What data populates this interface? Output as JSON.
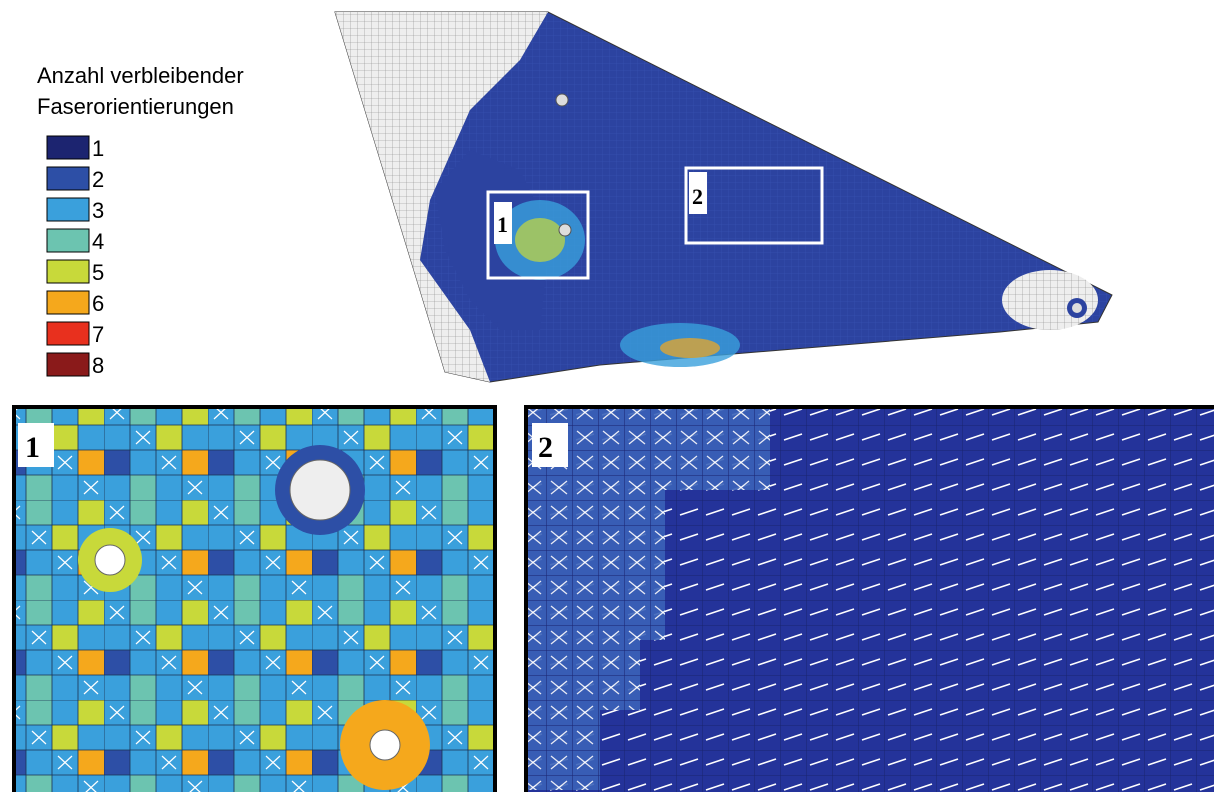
{
  "legend": {
    "title": [
      "Anzahl verbleibender",
      "Faserorientierungen"
    ],
    "items": [
      {
        "label": "1",
        "color": "#1c2470"
      },
      {
        "label": "2",
        "color": "#2d4fa6"
      },
      {
        "label": "3",
        "color": "#3aa0dc"
      },
      {
        "label": "4",
        "color": "#6cc4b0"
      },
      {
        "label": "5",
        "color": "#c8d93a"
      },
      {
        "label": "6",
        "color": "#f5a81c"
      },
      {
        "label": "7",
        "color": "#e8301e"
      },
      {
        "label": "8",
        "color": "#8a1a1a"
      }
    ]
  },
  "regions": [
    {
      "label": "1"
    },
    {
      "label": "2"
    }
  ],
  "panels": [
    {
      "label": "1"
    },
    {
      "label": "2"
    }
  ]
}
